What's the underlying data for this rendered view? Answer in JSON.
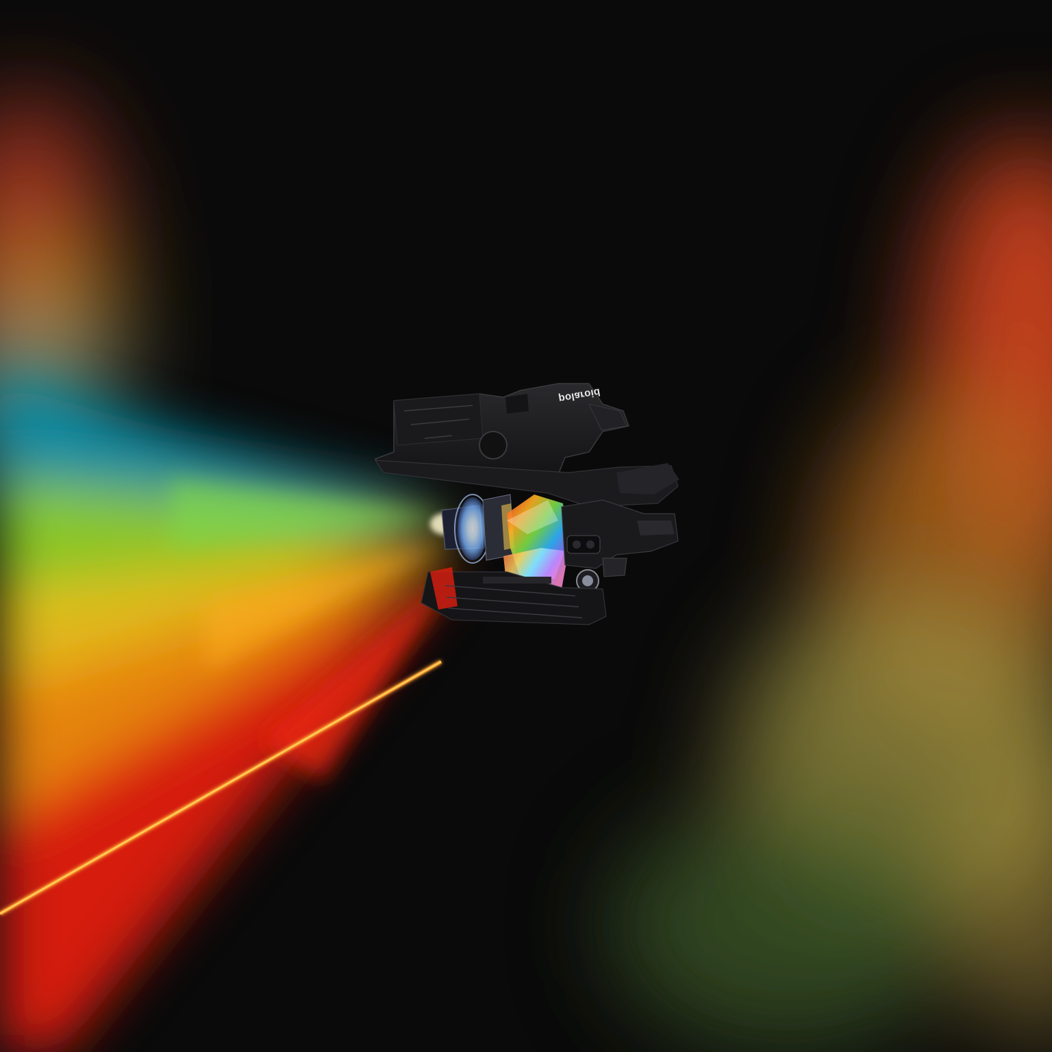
{
  "brand": {
    "logo_text": "polaroid"
  },
  "colors": {
    "background": "#0a0a0a",
    "beam_teal": "#0f8fa6",
    "beam_green": "#8fcf28",
    "beam_yellow": "#e9c21e",
    "beam_orange": "#f08a10",
    "beam_red": "#e01e10",
    "glow_right_red": "#c9411a",
    "glow_right_olive": "#9a9040",
    "laser": "#ffb020",
    "camera_body": "#1c1c1e"
  },
  "elements": {
    "camera": "polaroid-instant-camera-exploded-cutaway",
    "light_beam": "rainbow-light-beam",
    "laser_line": "orange-laser-line",
    "glow_left": "rainbow-glow-left",
    "glow_right": "red-green-glow-right"
  }
}
